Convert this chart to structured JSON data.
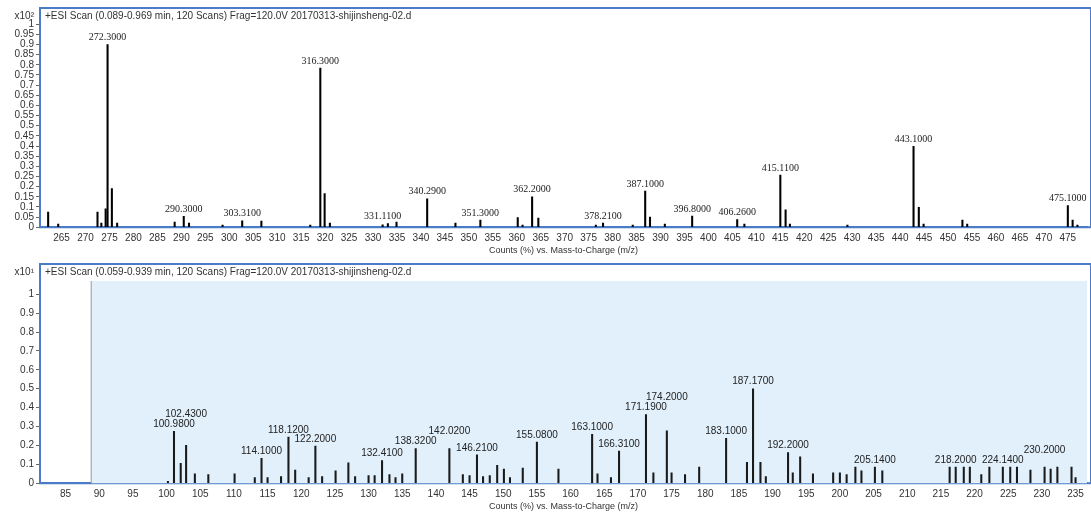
{
  "chart_data": [
    {
      "type": "bar",
      "title": "+ESI Scan (0.089-0.969 min, 120 Scans) Frag=120.0V 20170313-shijinsheng-02.d",
      "xlabel": "Counts (%) vs. Mass-to-Charge (m/z)",
      "ylabel": "x10²",
      "color": "#000000",
      "x": [
        262.2,
        264.3,
        272.5,
        273.3,
        274.2,
        274.6,
        275.5,
        276.6,
        288.6,
        290.5,
        291.6,
        298.6,
        302.7,
        306.7,
        316.9,
        319.0,
        319.9,
        321.0,
        332.0,
        333.1,
        334.9,
        341.3,
        347.2,
        352.4,
        360.2,
        361.2,
        363.2,
        364.5,
        376.5,
        378.0,
        384.2,
        386.8,
        387.8,
        390.9,
        396.6,
        406.0,
        407.5,
        415.0,
        416.1,
        417.0,
        429.0,
        442.8,
        443.9,
        444.9,
        453.0,
        454.0,
        475.0,
        476.0,
        477.0
      ],
      "values": [
        0.075,
        0.015,
        0.075,
        0.02,
        0.09,
        0.9,
        0.19,
        0.02,
        0.025,
        0.054,
        0.02,
        0.01,
        0.032,
        0.03,
        0.01,
        0.784,
        0.166,
        0.02,
        0.012,
        0.018,
        0.025,
        0.14,
        0.02,
        0.035,
        0.047,
        0.01,
        0.15,
        0.045,
        0.01,
        0.02,
        0.01,
        0.178,
        0.05,
        0.015,
        0.055,
        0.038,
        0.015,
        0.257,
        0.085,
        0.015,
        0.01,
        0.398,
        0.098,
        0.015,
        0.035,
        0.015,
        0.107,
        0.035,
        0.01
      ],
      "annotations": [
        {
          "text": "272.3000",
          "x": 274.6,
          "y": 0.9
        },
        {
          "text": "290.3000",
          "x": 290.5,
          "y": 0.054
        },
        {
          "text": "303.3100",
          "x": 302.7,
          "y": 0.032
        },
        {
          "text": "316.3000",
          "x": 319.0,
          "y": 0.784
        },
        {
          "text": "331.1100",
          "x": 332.0,
          "y": 0.012
        },
        {
          "text": "340.2900",
          "x": 341.3,
          "y": 0.14
        },
        {
          "text": "351.3000",
          "x": 352.4,
          "y": 0.035
        },
        {
          "text": "362.2000",
          "x": 363.2,
          "y": 0.15
        },
        {
          "text": "378.2100",
          "x": 378.0,
          "y": 0.02
        },
        {
          "text": "387.1000",
          "x": 386.8,
          "y": 0.178
        },
        {
          "text": "396.8000",
          "x": 396.6,
          "y": 0.055
        },
        {
          "text": "406.2600",
          "x": 406.0,
          "y": 0.038
        },
        {
          "text": "415.1100",
          "x": 415.0,
          "y": 0.257
        },
        {
          "text": "443.1000",
          "x": 442.8,
          "y": 0.398
        },
        {
          "text": "475.1000",
          "x": 475.0,
          "y": 0.107
        }
      ],
      "xlim": [
        260.5,
        479
      ],
      "xticks": [
        265,
        270,
        275,
        280,
        285,
        290,
        295,
        300,
        305,
        310,
        315,
        320,
        325,
        330,
        335,
        340,
        345,
        350,
        355,
        360,
        365,
        370,
        375,
        380,
        385,
        390,
        395,
        400,
        405,
        410,
        415,
        420,
        425,
        430,
        435,
        440,
        445,
        450,
        455,
        460,
        465,
        470,
        475
      ],
      "ylim": [
        0,
        1.08
      ],
      "yticks": [
        0,
        0.05,
        0.1,
        0.15,
        0.2,
        0.25,
        0.3,
        0.35,
        0.4,
        0.45,
        0.5,
        0.55,
        0.6,
        0.65,
        0.7,
        0.75,
        0.8,
        0.85,
        0.9,
        0.95,
        1
      ]
    },
    {
      "type": "bar",
      "title": "+ESI Scan (0.059-0.939 min, 120 Scans) Frag=120.0V 20170313-shijinsheng-02.d",
      "xlabel": "Counts (%) vs. Mass-to-Charge (m/z)",
      "ylabel": "x10¹",
      "color": "#1a1a1a",
      "x": [
        100.2,
        101.1,
        102.1,
        102.9,
        104.2,
        106.2,
        110.1,
        113.1,
        114.1,
        115.0,
        117.0,
        118.1,
        119.1,
        121.1,
        122.1,
        123.1,
        125.1,
        127.0,
        128.0,
        130.0,
        130.9,
        132.0,
        133.1,
        134.0,
        135.0,
        137.0,
        142.0,
        144.0,
        145.0,
        146.1,
        147.0,
        148.0,
        149.1,
        150.1,
        151.0,
        152.9,
        155.0,
        158.2,
        163.2,
        164.0,
        166.0,
        167.2,
        171.2,
        172.3,
        174.3,
        175.0,
        177.0,
        179.1,
        183.1,
        186.2,
        187.1,
        188.2,
        189.0,
        192.3,
        193.0,
        194.1,
        196.0,
        199.0,
        200.0,
        201.0,
        202.3,
        203.2,
        205.2,
        206.3,
        216.3,
        217.2,
        218.4,
        219.3,
        221.0,
        222.2,
        224.2,
        225.3,
        226.3,
        228.3,
        230.4,
        231.3,
        232.3,
        234.4,
        235.0
      ],
      "values": [
        0.01,
        0.275,
        0.105,
        0.2,
        0.05,
        0.045,
        0.05,
        0.03,
        0.131,
        0.03,
        0.035,
        0.244,
        0.07,
        0.03,
        0.196,
        0.035,
        0.065,
        0.108,
        0.035,
        0.04,
        0.04,
        0.12,
        0.045,
        0.03,
        0.05,
        0.183,
        0.183,
        0.045,
        0.04,
        0.15,
        0.035,
        0.04,
        0.095,
        0.075,
        0.03,
        0.08,
        0.218,
        0.075,
        0.258,
        0.05,
        0.03,
        0.17,
        0.363,
        0.055,
        0.277,
        0.055,
        0.045,
        0.085,
        0.238,
        0.11,
        0.5,
        0.11,
        0.035,
        0.162,
        0.055,
        0.14,
        0.05,
        0.055,
        0.055,
        0.045,
        0.085,
        0.065,
        0.085,
        0.065,
        0.085,
        0.085,
        0.085,
        0.085,
        0.045,
        0.085,
        0.085,
        0.085,
        0.085,
        0.07,
        0.085,
        0.075,
        0.085,
        0.085,
        0.03
      ],
      "annotations": [
        {
          "text": "100.9800",
          "x": 101.1,
          "y": 0.275
        },
        {
          "text": "102.4300",
          "x": 102.9,
          "y": 0.2
        },
        {
          "text": "114.1000",
          "x": 114.1,
          "y": 0.131
        },
        {
          "text": "118.1200",
          "x": 118.1,
          "y": 0.244
        },
        {
          "text": "122.2000",
          "x": 122.1,
          "y": 0.196
        },
        {
          "text": "132.4100",
          "x": 132.0,
          "y": 0.12
        },
        {
          "text": "138.3200",
          "x": 137.0,
          "y": 0.183
        },
        {
          "text": "142.0200",
          "x": 142.0,
          "y": 0.183
        },
        {
          "text": "146.2100",
          "x": 146.1,
          "y": 0.15
        },
        {
          "text": "155.0800",
          "x": 155.0,
          "y": 0.218
        },
        {
          "text": "163.1000",
          "x": 163.2,
          "y": 0.258
        },
        {
          "text": "166.3100",
          "x": 167.2,
          "y": 0.17
        },
        {
          "text": "171.1900",
          "x": 171.2,
          "y": 0.363
        },
        {
          "text": "174.2000",
          "x": 174.3,
          "y": 0.277
        },
        {
          "text": "183.1000",
          "x": 183.1,
          "y": 0.238
        },
        {
          "text": "187.1700",
          "x": 187.1,
          "y": 0.5
        },
        {
          "text": "192.2000",
          "x": 192.3,
          "y": 0.162
        },
        {
          "text": "205.1400",
          "x": 205.2,
          "y": 0.085
        },
        {
          "text": "218.2000",
          "x": 217.2,
          "y": 0.085
        },
        {
          "text": "224.1400",
          "x": 224.2,
          "y": 0.085
        },
        {
          "text": "230.2000",
          "x": 230.4,
          "y": 0.085
        }
      ],
      "bands": [
        {
          "axis": "x",
          "from": 88.8,
          "to": 236.7,
          "color": "#e1f0fb"
        }
      ],
      "ref_lines": [
        {
          "axis": "x",
          "value": 88.8,
          "color": "#999999"
        }
      ],
      "xlim": [
        81.2,
        236.7
      ],
      "xticks": [
        85,
        90,
        95,
        100,
        105,
        110,
        115,
        120,
        125,
        130,
        135,
        140,
        145,
        150,
        155,
        160,
        165,
        170,
        175,
        180,
        185,
        190,
        195,
        200,
        205,
        210,
        215,
        220,
        225,
        230,
        235
      ],
      "ylim": [
        0,
        1.16
      ],
      "yticks": [
        0,
        0.1,
        0.2,
        0.3,
        0.4,
        0.5,
        0.6,
        0.7,
        0.8,
        0.9,
        1
      ]
    }
  ]
}
